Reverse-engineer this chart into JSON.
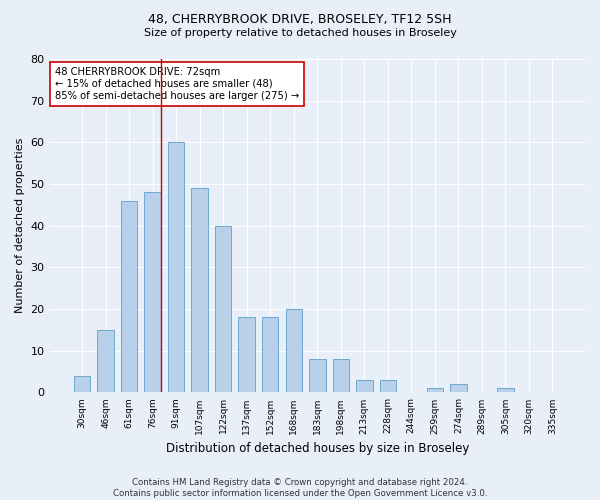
{
  "title1": "48, CHERRYBROOK DRIVE, BROSELEY, TF12 5SH",
  "title2": "Size of property relative to detached houses in Broseley",
  "xlabel": "Distribution of detached houses by size in Broseley",
  "ylabel": "Number of detached properties",
  "categories": [
    "30sqm",
    "46sqm",
    "61sqm",
    "76sqm",
    "91sqm",
    "107sqm",
    "122sqm",
    "137sqm",
    "152sqm",
    "168sqm",
    "183sqm",
    "198sqm",
    "213sqm",
    "228sqm",
    "244sqm",
    "259sqm",
    "274sqm",
    "289sqm",
    "305sqm",
    "320sqm",
    "335sqm"
  ],
  "values": [
    4,
    15,
    46,
    48,
    60,
    49,
    40,
    18,
    18,
    20,
    8,
    8,
    3,
    3,
    0,
    1,
    2,
    0,
    1,
    0,
    0
  ],
  "bar_color": "#b8d0ea",
  "bar_edge_color": "#6fa8d0",
  "background_color": "#e8eff8",
  "grid_color": "#ffffff",
  "ylim": [
    0,
    80
  ],
  "yticks": [
    0,
    10,
    20,
    30,
    40,
    50,
    60,
    70,
    80
  ],
  "property_line_x": 3,
  "property_line_color": "#cc0000",
  "annotation_line1": "48 CHERRYBROOK DRIVE: 72sqm",
  "annotation_line2": "← 15% of detached houses are smaller (48)",
  "annotation_line3": "85% of semi-detached houses are larger (275) →",
  "annotation_box_color": "#ffffff",
  "annotation_box_edge": "#cc0000",
  "footer": "Contains HM Land Registry data © Crown copyright and database right 2024.\nContains public sector information licensed under the Open Government Licence v3.0."
}
